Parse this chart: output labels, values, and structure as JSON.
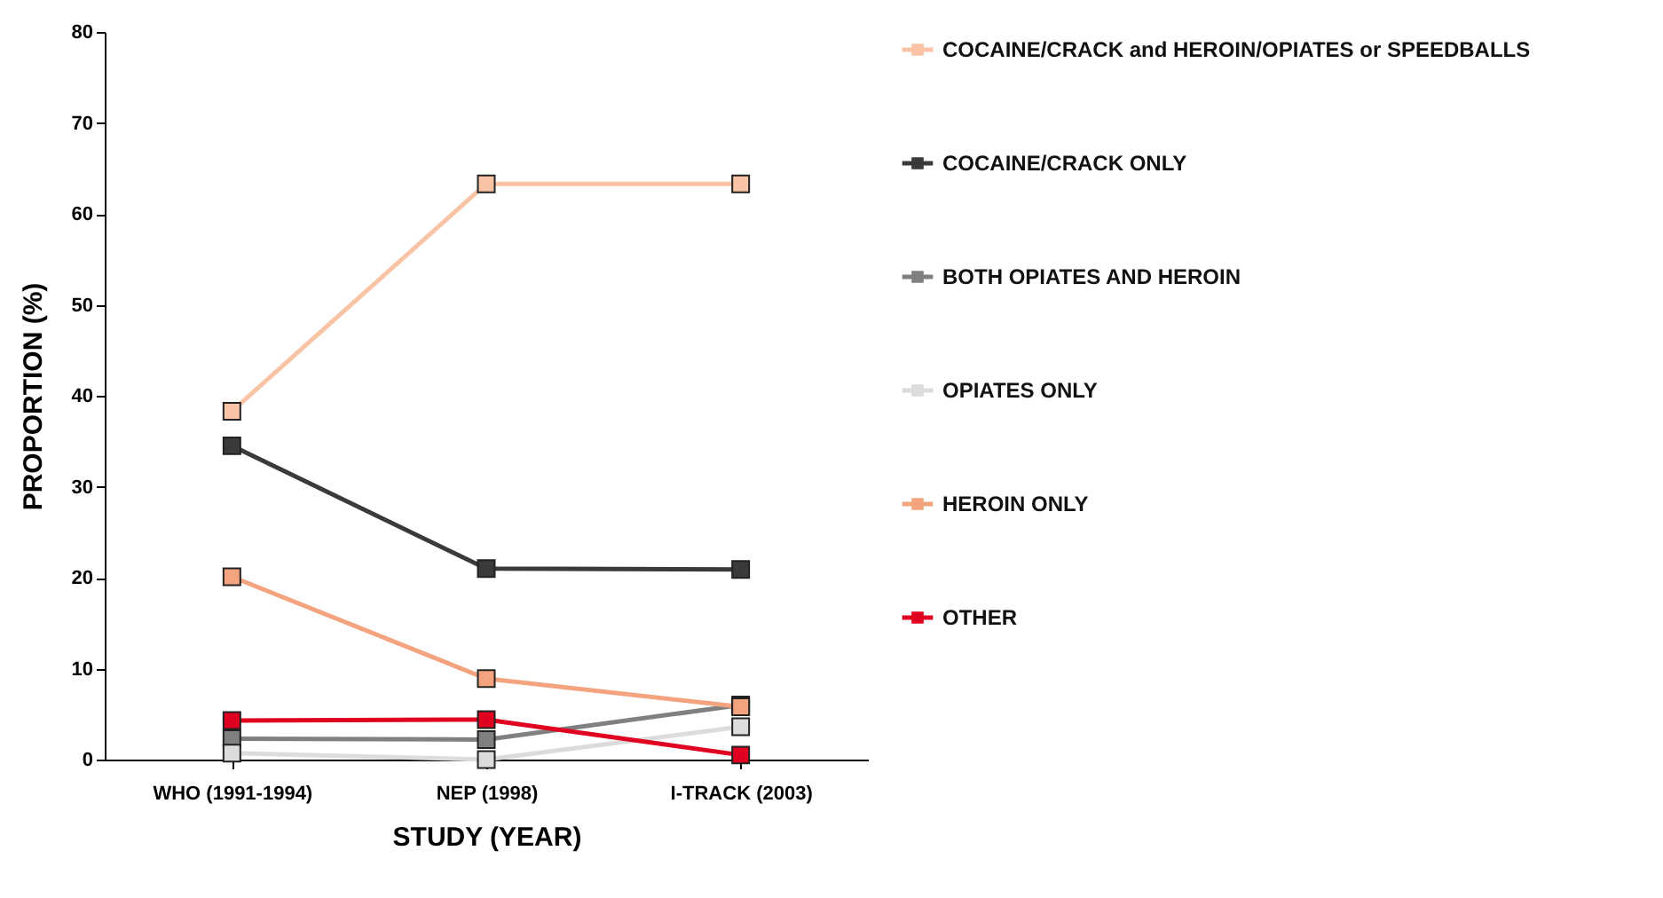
{
  "chart_data": {
    "type": "line",
    "xlabel": "STUDY (YEAR)",
    "ylabel": "PROPORTION (%)",
    "categories": [
      "WHO (1991-1994)",
      "NEP (1998)",
      "I-TRACK (2003)"
    ],
    "series": [
      {
        "name": "COCAINE/CRACK and HEROIN/OPIATES or SPEEDBALLS",
        "color": "#f9c4a6",
        "values": [
          38.3,
          63.3,
          63.3
        ]
      },
      {
        "name": "COCAINE/CRACK ONLY",
        "color": "#3a3a3a",
        "values": [
          34.5,
          21.0,
          20.9
        ]
      },
      {
        "name": "BOTH OPIATES AND HEROIN",
        "color": "#808080",
        "values": [
          2.3,
          2.2,
          6.0
        ]
      },
      {
        "name": "OPIATES ONLY",
        "color": "#dcdcdc",
        "values": [
          0.7,
          0,
          3.6
        ]
      },
      {
        "name": "HEROIN ONLY",
        "color": "#f4a37f",
        "values": [
          20.1,
          8.9,
          5.8
        ]
      },
      {
        "name": "OTHER",
        "color": "#e0001f",
        "values": [
          4.3,
          4.4,
          0.5
        ]
      }
    ],
    "ylim": [
      0,
      80
    ],
    "yticks": [
      0,
      10,
      20,
      30,
      40,
      50,
      60,
      70,
      80
    ],
    "grid": false,
    "legend": "right",
    "marker": "square",
    "line_style": "solid"
  }
}
